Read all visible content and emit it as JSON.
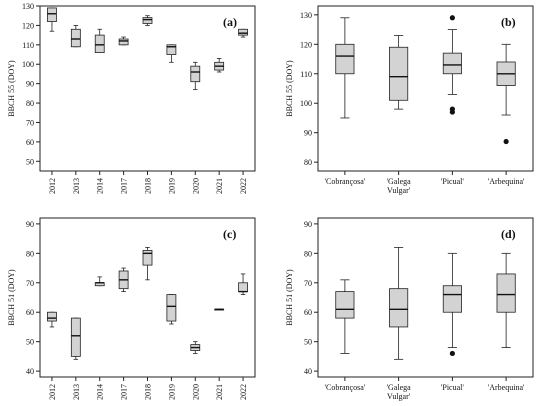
{
  "chart_data": [
    {
      "type": "box",
      "panel": "(a)",
      "ylabel": "BBCH 55 (DOY)",
      "ylim": [
        45,
        130
      ],
      "yticks": [
        50,
        60,
        70,
        80,
        90,
        100,
        110,
        120,
        130
      ],
      "categories": [
        "2012",
        "2013",
        "2014",
        "2017",
        "2018",
        "2019",
        "2020",
        "2021",
        "2022"
      ],
      "boxes": [
        {
          "min": 117,
          "q1": 122,
          "median": 126,
          "q3": 129,
          "max": 129
        },
        {
          "min": 109,
          "q1": 109,
          "median": 113,
          "q3": 118,
          "max": 120
        },
        {
          "min": 106,
          "q1": 106,
          "median": 110,
          "q3": 115,
          "max": 118
        },
        {
          "min": 110,
          "q1": 110,
          "median": 112,
          "q3": 113,
          "max": 114
        },
        {
          "min": 120,
          "q1": 121,
          "median": 123,
          "q3": 124,
          "max": 125
        },
        {
          "min": 101,
          "q1": 105,
          "median": 109,
          "q3": 110,
          "max": 110
        },
        {
          "min": 87,
          "q1": 91,
          "median": 96,
          "q3": 99,
          "max": 101
        },
        {
          "min": 96,
          "q1": 97,
          "median": 99,
          "q3": 101,
          "max": 103
        },
        {
          "min": 114,
          "q1": 115,
          "median": 116,
          "q3": 118,
          "max": 118
        }
      ],
      "outliers": []
    },
    {
      "type": "box",
      "panel": "(b)",
      "ylabel": "BBCH 55 (DOY)",
      "ylim": [
        77,
        133
      ],
      "yticks": [
        80,
        90,
        100,
        110,
        120,
        130
      ],
      "categories": [
        "'Cobrançosa'",
        "'Galega Vulgar'",
        "'Picual'",
        "'Arbequina'"
      ],
      "boxes": [
        {
          "min": 95,
          "q1": 110,
          "median": 116,
          "q3": 120,
          "max": 129
        },
        {
          "min": 98,
          "q1": 101,
          "median": 109,
          "q3": 119,
          "max": 123
        },
        {
          "min": 103,
          "q1": 110,
          "median": 113,
          "q3": 117,
          "max": 125
        },
        {
          "min": 96,
          "q1": 106,
          "median": 110,
          "q3": 114,
          "max": 120
        }
      ],
      "outliers": [
        {
          "category": "'Picual'",
          "value": 129
        },
        {
          "category": "'Picual'",
          "value": 98
        },
        {
          "category": "'Picual'",
          "value": 97
        },
        {
          "category": "'Arbequina'",
          "value": 87
        }
      ]
    },
    {
      "type": "box",
      "panel": "(c)",
      "ylabel": "BBCH 51 (DOY)",
      "ylim": [
        38,
        92
      ],
      "yticks": [
        40,
        50,
        60,
        70,
        80,
        90
      ],
      "categories": [
        "2012",
        "2013",
        "2014",
        "2017",
        "2018",
        "2019",
        "2020",
        "2021",
        "2022"
      ],
      "boxes": [
        {
          "min": 55,
          "q1": 57,
          "median": 58,
          "q3": 60,
          "max": 60
        },
        {
          "min": 44,
          "q1": 45,
          "median": 52,
          "q3": 58,
          "max": 58
        },
        {
          "min": 69,
          "q1": 69,
          "median": 70,
          "q3": 70,
          "max": 72
        },
        {
          "min": 67,
          "q1": 68,
          "median": 71,
          "q3": 74,
          "max": 75
        },
        {
          "min": 71,
          "q1": 76,
          "median": 80,
          "q3": 81,
          "max": 82
        },
        {
          "min": 56,
          "q1": 57,
          "median": 62,
          "q3": 66,
          "max": 66
        },
        {
          "min": 46,
          "q1": 47,
          "median": 48,
          "q3": 49,
          "max": 50
        },
        {
          "min": 61,
          "q1": 61,
          "median": 61,
          "q3": 61,
          "max": 61
        },
        {
          "min": 66,
          "q1": 67,
          "median": 67,
          "q3": 70,
          "max": 73
        }
      ],
      "outliers": []
    },
    {
      "type": "box",
      "panel": "(d)",
      "ylabel": "BBCH 51 (DOY)",
      "ylim": [
        38,
        92
      ],
      "yticks": [
        40,
        50,
        60,
        70,
        80,
        90
      ],
      "categories": [
        "'Cobrançosa'",
        "'Galega Vulgar'",
        "'Picual'",
        "'Arbequina'"
      ],
      "boxes": [
        {
          "min": 46,
          "q1": 58,
          "median": 61,
          "q3": 67,
          "max": 71
        },
        {
          "min": 44,
          "q1": 55,
          "median": 61,
          "q3": 68,
          "max": 82
        },
        {
          "min": 48,
          "q1": 60,
          "median": 66,
          "q3": 69,
          "max": 80
        },
        {
          "min": 48,
          "q1": 60,
          "median": 66,
          "q3": 73,
          "max": 80
        }
      ],
      "outliers": [
        {
          "category": "'Picual'",
          "value": 46
        }
      ]
    }
  ]
}
